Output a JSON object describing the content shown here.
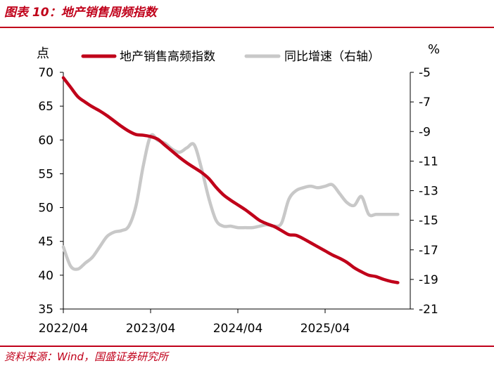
{
  "figure_title": "图表 10：地产销售周频指数",
  "source": "资料来源：Wind，国盛证券研究所",
  "chart_data": {
    "type": "line",
    "left_unit": "点",
    "right_unit": "%",
    "ylim_left": [
      35,
      70
    ],
    "ylim_right": [
      -21,
      -5
    ],
    "yticks_left": [
      35,
      40,
      45,
      50,
      55,
      60,
      65,
      70
    ],
    "yticks_right": [
      -21,
      -19,
      -17,
      -15,
      -13,
      -11,
      -9,
      -7,
      -5
    ],
    "x_ticks": [
      "2022/04",
      "2023/04",
      "2024/04",
      "2025/04"
    ],
    "legend_placement": "top",
    "grid": false,
    "colors": {
      "primary": "#c0001a",
      "secondary": "#c8c8c8"
    },
    "series": [
      {
        "name": "地产销售高频指数",
        "axis": "left",
        "x": [
          "2022/04",
          "2022/05",
          "2022/06",
          "2022/07",
          "2022/08",
          "2022/09",
          "2022/10",
          "2022/11",
          "2022/12",
          "2023/01",
          "2023/02",
          "2023/03",
          "2023/04",
          "2023/05",
          "2023/06",
          "2023/07",
          "2023/08",
          "2023/09",
          "2023/10",
          "2023/11",
          "2023/12",
          "2024/01",
          "2024/02",
          "2024/03",
          "2024/04",
          "2024/05",
          "2024/06",
          "2024/07",
          "2024/08",
          "2024/09",
          "2024/10",
          "2024/11",
          "2024/12",
          "2025/01",
          "2025/02",
          "2025/03",
          "2025/04",
          "2025/05",
          "2025/06",
          "2025/07",
          "2025/08",
          "2025/09",
          "2025/10",
          "2025/11",
          "2025/12",
          "2026/01",
          "2026/02"
        ],
        "values": [
          69.2,
          67.8,
          66.4,
          65.6,
          64.9,
          64.3,
          63.6,
          62.8,
          62.0,
          61.3,
          60.8,
          60.7,
          60.5,
          60.1,
          59.2,
          58.3,
          57.4,
          56.6,
          55.9,
          55.2,
          54.3,
          53.0,
          51.9,
          51.1,
          50.4,
          49.7,
          48.9,
          48.1,
          47.6,
          47.2,
          46.6,
          46.0,
          45.9,
          45.4,
          44.8,
          44.2,
          43.6,
          43.0,
          42.5,
          41.9,
          41.1,
          40.5,
          40.0,
          39.8,
          39.4,
          39.1,
          38.9
        ],
        "color": "#c0001a"
      },
      {
        "name": "同比增速（右轴）",
        "axis": "right",
        "x": [
          "2022/04",
          "2022/05",
          "2022/06",
          "2022/07",
          "2022/08",
          "2022/09",
          "2022/10",
          "2022/11",
          "2022/12",
          "2023/01",
          "2023/02",
          "2023/03",
          "2023/04",
          "2023/05",
          "2023/06",
          "2023/07",
          "2023/08",
          "2023/09",
          "2023/10",
          "2023/11",
          "2023/12",
          "2024/01",
          "2024/02",
          "2024/03",
          "2024/04",
          "2024/05",
          "2024/06",
          "2024/07",
          "2024/08",
          "2024/09",
          "2024/10",
          "2024/11",
          "2024/12",
          "2025/01",
          "2025/02",
          "2025/03",
          "2025/04",
          "2025/05",
          "2025/06",
          "2025/07",
          "2025/08",
          "2025/09",
          "2025/10",
          "2025/11",
          "2025/12",
          "2026/01",
          "2026/02"
        ],
        "values": [
          -16.8,
          -18.1,
          -18.3,
          -17.9,
          -17.5,
          -16.8,
          -16.1,
          -15.8,
          -15.7,
          -15.4,
          -14.0,
          -11.3,
          -9.3,
          -9.6,
          -9.8,
          -10.2,
          -10.4,
          -10.1,
          -9.9,
          -11.5,
          -13.5,
          -15.0,
          -15.4,
          -15.4,
          -15.5,
          -15.5,
          -15.5,
          -15.4,
          -15.3,
          -15.4,
          -15.2,
          -13.6,
          -13.0,
          -12.8,
          -12.7,
          -12.8,
          -12.7,
          -12.6,
          -13.2,
          -13.8,
          -14.0,
          -13.4,
          -14.6,
          -14.6,
          -14.6,
          -14.6,
          -14.6
        ],
        "color": "#c8c8c8"
      }
    ]
  }
}
